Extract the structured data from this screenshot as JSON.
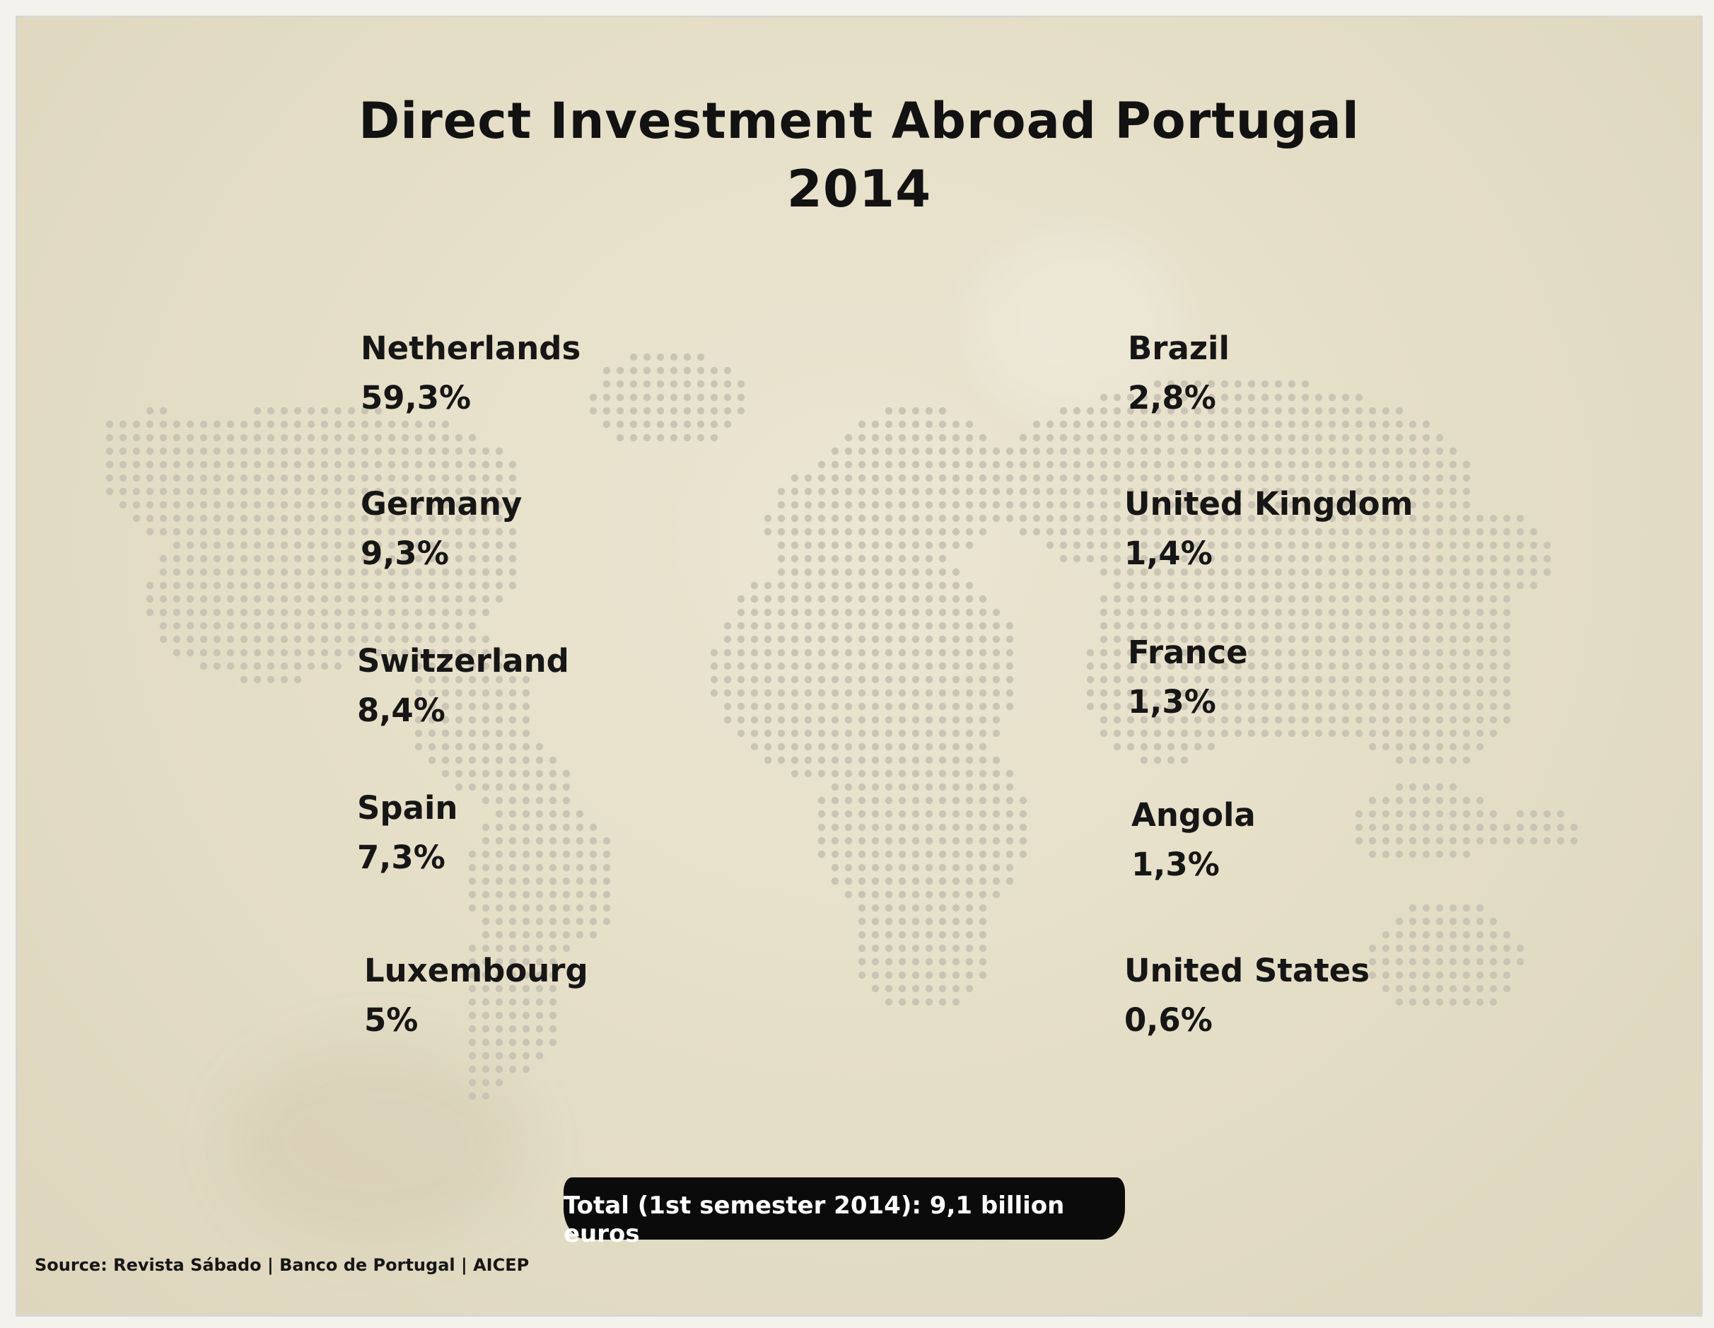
{
  "title": "Direct Investment Abroad Portugal",
  "year": "2014",
  "left_column": [
    {
      "country": "Netherlands",
      "share": "59,3%"
    },
    {
      "country": "Germany",
      "share": "9,3%"
    },
    {
      "country": "Switzerland",
      "share": "8,4%"
    },
    {
      "country": "Spain",
      "share": "7,3%"
    },
    {
      "country": "Luxembourg",
      "share": "5%"
    }
  ],
  "right_column": [
    {
      "country": "Brazil",
      "share": "2,8%"
    },
    {
      "country": "United Kingdom",
      "share": "1,4%"
    },
    {
      "country": "France",
      "share": "1,3%"
    },
    {
      "country": "Angola",
      "share": "1,3%"
    },
    {
      "country": "United States",
      "share": "0,6%"
    }
  ],
  "total": "Total (1st semester 2014): 9,1 billion euros",
  "source": "Source: Revista Sábado | Banco de Portugal | AICEP",
  "colors": {
    "background": "#e6dfc8",
    "dots": "#c9c4b4",
    "text": "#161616",
    "total_box": "#0b0b0b"
  }
}
